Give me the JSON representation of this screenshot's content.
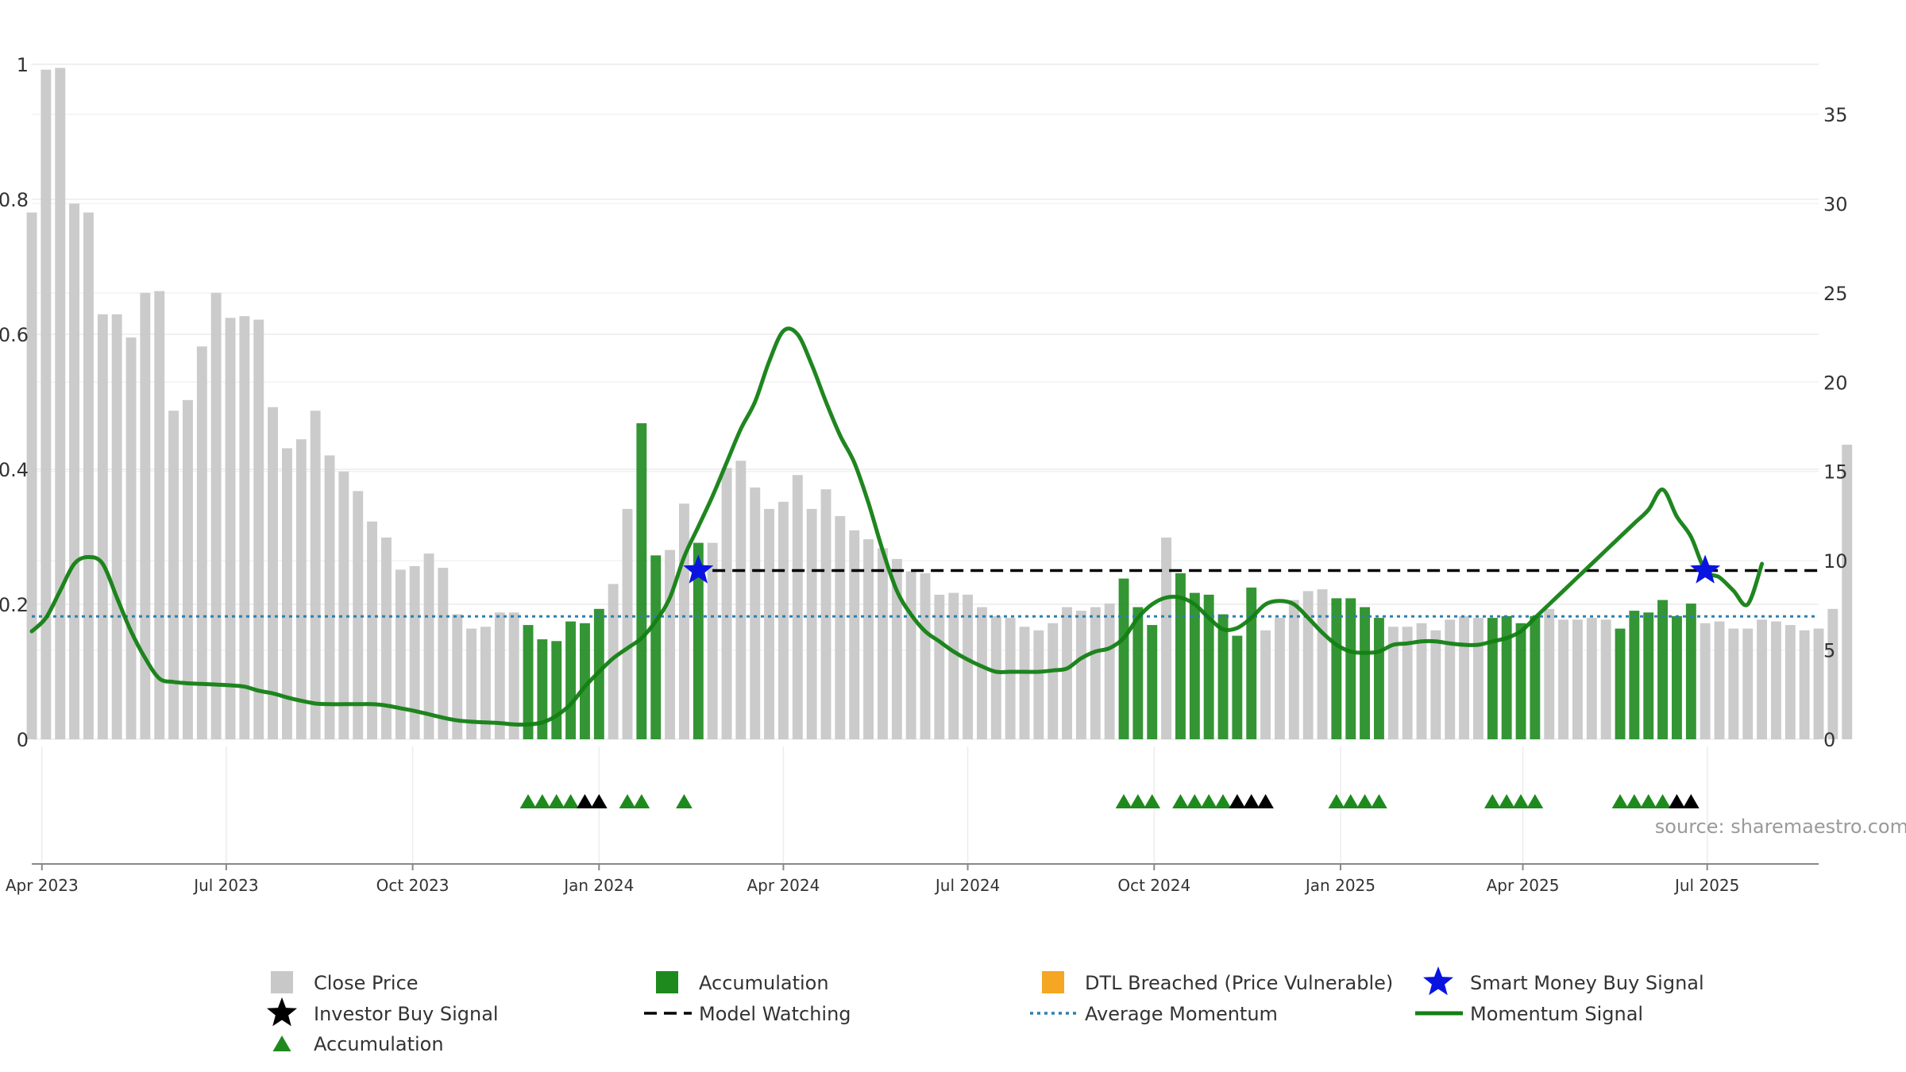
{
  "chart_data": {
    "type": "bar",
    "source": "source: sharemaestro.com",
    "x_axis": {
      "range": [
        "2023-03-27",
        "2025-08-25"
      ],
      "tick_labels": [
        {
          "date": "2023-04-01",
          "label": "Apr 2023"
        },
        {
          "date": "2023-07-01",
          "label": "Jul 2023"
        },
        {
          "date": "2023-10-01",
          "label": "Oct 2023"
        },
        {
          "date": "2024-01-01",
          "label": "Jan 2024"
        },
        {
          "date": "2024-04-01",
          "label": "Apr 2024"
        },
        {
          "date": "2024-07-01",
          "label": "Jul 2024"
        },
        {
          "date": "2024-10-01",
          "label": "Oct 2024"
        },
        {
          "date": "2025-01-01",
          "label": "Jan 2025"
        },
        {
          "date": "2025-04-01",
          "label": "Apr 2025"
        },
        {
          "date": "2025-07-01",
          "label": "Jul 2025"
        }
      ]
    },
    "y_left": {
      "range": [
        0,
        1
      ],
      "ticks": [
        {
          "v": 0,
          "label": "0"
        },
        {
          "v": 0.2,
          "label": "0.2"
        },
        {
          "v": 0.4,
          "label": "0.4"
        },
        {
          "v": 0.6,
          "label": "0.6"
        },
        {
          "v": 0.8,
          "label": "0.8"
        },
        {
          "v": 1,
          "label": "1"
        }
      ]
    },
    "y_right": {
      "range": [
        0,
        37.8
      ],
      "ticks": [
        {
          "v": 0,
          "label": "0"
        },
        {
          "v": 5,
          "label": "5"
        },
        {
          "v": 10,
          "label": "10"
        },
        {
          "v": 15,
          "label": "15"
        },
        {
          "v": 20,
          "label": "20"
        },
        {
          "v": 25,
          "label": "25"
        },
        {
          "v": 30,
          "label": "30"
        },
        {
          "v": 35,
          "label": "35"
        }
      ]
    },
    "grid": true,
    "colors": {
      "close": "#c8c8c8",
      "accumulation": "#1e8a1e",
      "dtl": "#f5a623",
      "smart_money": "#0a14e0",
      "investor": "#000000",
      "momentum": "#138013",
      "avg_momentum": "#2f7fb0",
      "model_watching": "#000000"
    },
    "series": {
      "close_price": {
        "start": "2023-03-27",
        "interval_days": 7,
        "values": [
          29.5,
          37.5,
          37.6,
          30,
          29.5,
          23.8,
          23.8,
          22.5,
          25,
          25.1,
          18.4,
          19,
          22,
          25,
          23.6,
          23.7,
          23.5,
          18.6,
          16.3,
          16.8,
          18.4,
          15.9,
          15,
          13.9,
          12.2,
          11.3,
          9.5,
          9.7,
          10.4,
          9.6,
          7,
          6.2,
          6.3,
          7.1,
          7.1,
          6.4,
          5.6,
          5.5,
          6.6,
          6.5,
          7.3,
          8.7,
          12.9,
          17.7,
          10.3,
          10.6,
          13.2,
          11,
          11,
          15.2,
          15.6,
          14.1,
          12.9,
          13.3,
          14.8,
          12.9,
          14,
          12.5,
          11.7,
          11.2,
          10.7,
          10.1,
          9.4,
          9.3,
          8.1,
          8.2,
          8.1,
          7.4,
          6.9,
          6.8,
          6.3,
          6.1,
          6.5,
          7.4,
          7.2,
          7.4,
          7.6,
          9,
          7.4,
          6.4,
          11.3,
          9.3,
          8.2,
          8.1,
          7,
          5.8,
          8.5,
          6.1,
          6.8,
          7.8,
          8.3,
          8.4,
          7.9,
          7.9,
          7.4,
          6.8,
          6.3,
          6.3,
          6.5,
          6.1,
          6.7,
          6.9,
          6.8,
          6.8,
          6.9,
          6.5,
          6.9,
          7.3,
          6.7,
          6.7,
          6.8,
          6.7,
          6.2,
          7.2,
          7.1,
          7.8,
          6.9,
          7.6,
          6.5,
          6.6,
          6.2,
          6.2,
          6.7,
          6.6,
          6.4,
          6.1,
          6.2,
          7.3,
          16.5
        ]
      },
      "accumulation_weeks": [
        35,
        36,
        37,
        38,
        39,
        40,
        43,
        44,
        47,
        77,
        78,
        79,
        81,
        82,
        83,
        84,
        85,
        86,
        92,
        93,
        94,
        95,
        103,
        104,
        105,
        106,
        112,
        113,
        114,
        115,
        116,
        117
      ],
      "momentum_signal": {
        "start": "2023-03-27",
        "interval_days": 7,
        "values": [
          0.16,
          0.18,
          0.22,
          0.26,
          0.27,
          0.26,
          0.21,
          0.16,
          0.12,
          0.09,
          0.085,
          0.083,
          0.082,
          0.081,
          0.08,
          0.078,
          0.072,
          0.068,
          0.062,
          0.057,
          0.053,
          0.052,
          0.052,
          0.052,
          0.052,
          0.05,
          0.046,
          0.042,
          0.037,
          0.032,
          0.028,
          0.026,
          0.025,
          0.024,
          0.022,
          0.022,
          0.025,
          0.035,
          0.052,
          0.078,
          0.1,
          0.12,
          0.135,
          0.15,
          0.175,
          0.21,
          0.27,
          0.315,
          0.36,
          0.41,
          0.46,
          0.5,
          0.56,
          0.605,
          0.6,
          0.555,
          0.5,
          0.45,
          0.41,
          0.35,
          0.28,
          0.22,
          0.185,
          0.16,
          0.145,
          0.13,
          0.118,
          0.108,
          0.1,
          0.1,
          0.1,
          0.1,
          0.102,
          0.105,
          0.12,
          0.13,
          0.135,
          0.15,
          0.18,
          0.2,
          0.21,
          0.21,
          0.2,
          0.18,
          0.163,
          0.165,
          0.18,
          0.2,
          0.205,
          0.2,
          0.18,
          0.158,
          0.14,
          0.13,
          0.128,
          0.13,
          0.14,
          0.142,
          0.145,
          0.145,
          0.142,
          0.14,
          0.14,
          0.145,
          0.15,
          0.16,
          0.18,
          0.2,
          0.22,
          0.24,
          0.26,
          0.28,
          0.3,
          0.32,
          0.34,
          0.37,
          0.33,
          0.3,
          0.25,
          0.24,
          0.22,
          0.2,
          0.26
        ]
      },
      "average_momentum": 0.182,
      "model_watching": {
        "value": 0.25,
        "from": "2024-02-26",
        "to": "2025-08-25"
      },
      "smart_money_buy_signals": [
        {
          "date": "2024-02-19",
          "value": 0.25
        },
        {
          "date": "2025-06-30",
          "value": 0.25
        }
      ],
      "accumulation_markers": [
        35,
        36,
        37,
        38,
        42,
        43,
        46,
        77,
        78,
        79,
        81,
        82,
        83,
        84,
        92,
        93,
        94,
        95,
        103,
        104,
        105,
        106,
        112,
        113,
        114,
        115
      ],
      "investor_buy_markers": [
        39,
        40,
        85,
        86,
        87,
        116,
        117
      ],
      "dtl_breached": []
    },
    "legend": {
      "placement": "bottom",
      "entries": [
        {
          "key": "close",
          "label": "Close Price",
          "icon": "square"
        },
        {
          "key": "accumulation",
          "label": "Accumulation",
          "icon": "square"
        },
        {
          "key": "dtl",
          "label": "DTL Breached (Price Vulnerable)",
          "icon": "square"
        },
        {
          "key": "smart_money",
          "label": "Smart Money Buy Signal",
          "icon": "star"
        },
        {
          "key": "investor",
          "label": "Investor Buy Signal",
          "icon": "star"
        },
        {
          "key": "model_watching",
          "label": "Model Watching",
          "icon": "dashed-line"
        },
        {
          "key": "avg_momentum",
          "label": "Average Momentum",
          "icon": "dotted-line"
        },
        {
          "key": "momentum",
          "label": "Momentum Signal",
          "icon": "line"
        },
        {
          "key": "accumulation",
          "label": "Accumulation",
          "icon": "triangle"
        }
      ]
    }
  }
}
